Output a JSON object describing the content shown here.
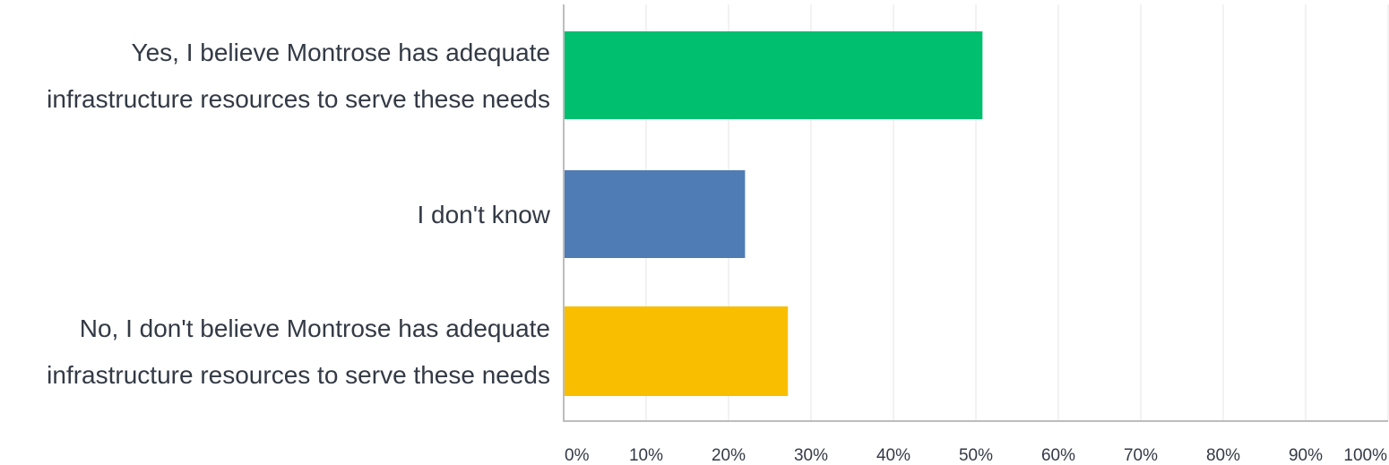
{
  "chart_data": {
    "type": "bar",
    "orientation": "horizontal",
    "categories": [
      [
        "Yes, I believe Montrose has adequate",
        "infrastructure resources to serve these needs"
      ],
      [
        "I don't know"
      ],
      [
        "No, I don't believe Montrose has adequate",
        "infrastructure resources to serve these needs"
      ]
    ],
    "values": [
      50.8,
      22.0,
      27.2
    ],
    "colors": [
      "#00bf6f",
      "#507cb6",
      "#f9be00"
    ],
    "xlim": [
      0,
      100
    ],
    "ticks": [
      "0%",
      "10%",
      "20%",
      "30%",
      "40%",
      "50%",
      "60%",
      "70%",
      "80%",
      "90%",
      "100%"
    ],
    "grid": true
  }
}
